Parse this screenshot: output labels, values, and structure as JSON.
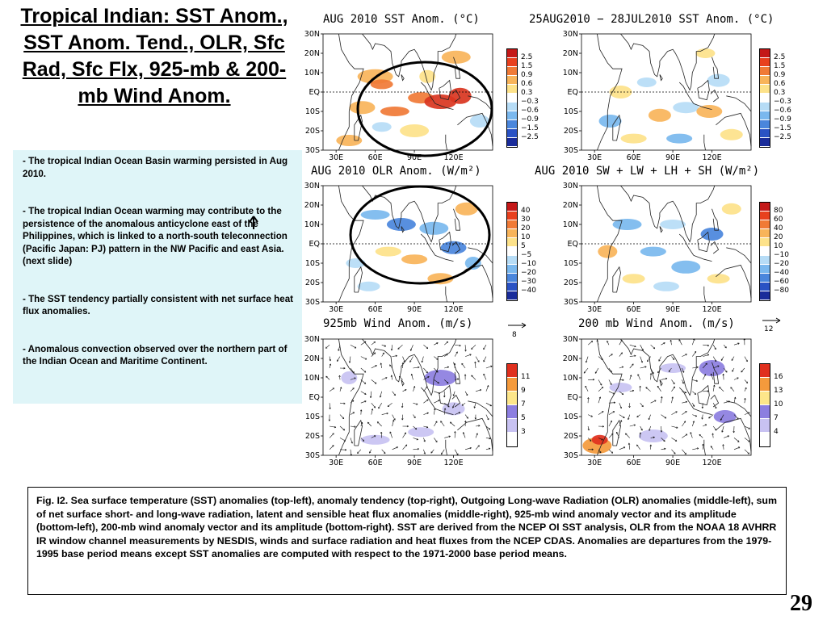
{
  "slide": {
    "title": "Tropical Indian: SST Anom., SST Anom. Tend., OLR, Sfc Rad, Sfc Flx, 925-mb & 200-mb Wind Anom.",
    "page_number": "29"
  },
  "bullets": [
    "- The tropical Indian Ocean Basin warming persisted in Aug 2010.",
    "- The tropical Indian Ocean warming may contribute to the persistence of the anomalous anticyclone east of the Philippines, which is linked to a north-south teleconnection (Pacific Japan: PJ) pattern in the NW Pacific and east Asia. (next slide)",
    "- The SST tendency partially consistent with net surface heat flux anomalies.",
    "- Anomalous convection observed over the northern part of the Indian Ocean and Maritime Continent."
  ],
  "caption": "Fig. I2. Sea surface temperature (SST) anomalies (top-left), anomaly tendency (top-right), Outgoing Long-wave Radiation (OLR) anomalies (middle-left), sum of net surface short- and long-wave radiation, latent and sensible heat flux anomalies (middle-right), 925-mb wind anomaly vector and its amplitude (bottom-left), 200-mb wind anomaly vector and its amplitude  (bottom-right). SST are derived from the NCEP OI SST analysis, OLR from the NOAA 18 AVHRR IR window channel measurements by NESDIS, winds and surface radiation and heat fluxes from the NCEP CDAS. Anomalies are  departures from the 1979-1995 base period means except SST anomalies are computed with respect to the 1971-2000 base period means.",
  "map_axes": {
    "lat_labels": [
      "30N",
      "20N",
      "10N",
      "EQ",
      "10S",
      "20S",
      "30S"
    ],
    "lon_labels": [
      "30E",
      "60E",
      "90E",
      "120E"
    ]
  },
  "panels": [
    {
      "id": "sst",
      "title": "AUG 2010 SST Anom. (°C)",
      "colorbar": [
        "2.5",
        "1.5",
        "0.9",
        "0.6",
        "0.3",
        "−0.3",
        "−0.6",
        "−0.9",
        "−1.5",
        "−2.5"
      ],
      "colors": [
        "#c41818",
        "#e8401e",
        "#f07a36",
        "#f8b45a",
        "#fde28a",
        "#ffffff",
        "#b6dcf6",
        "#7ab8ee",
        "#4a86dc",
        "#2a52c4",
        "#1a2c9a"
      ]
    },
    {
      "id": "sst-tend",
      "title": "25AUG2010 − 28JUL2010 SST Anom. (°C)",
      "colorbar": [
        "2.5",
        "1.5",
        "0.9",
        "0.6",
        "0.3",
        "−0.3",
        "−0.6",
        "−0.9",
        "−1.5",
        "−2.5"
      ],
      "colors": [
        "#c41818",
        "#e8401e",
        "#f07a36",
        "#f8b45a",
        "#fde28a",
        "#ffffff",
        "#b6dcf6",
        "#7ab8ee",
        "#4a86dc",
        "#2a52c4",
        "#1a2c9a"
      ]
    },
    {
      "id": "olr",
      "title": "AUG 2010 OLR Anom. (W/m²)",
      "colorbar": [
        "40",
        "30",
        "20",
        "10",
        "5",
        "−5",
        "−10",
        "−20",
        "−30",
        "−40"
      ],
      "colors": [
        "#c41818",
        "#e8401e",
        "#f07a36",
        "#f8b45a",
        "#fde28a",
        "#ffffff",
        "#b6dcf6",
        "#7ab8ee",
        "#4a86dc",
        "#2a52c4",
        "#1a2c9a"
      ]
    },
    {
      "id": "sfc-flux",
      "title": "AUG 2010 SW + LW + LH + SH (W/m²)",
      "colorbar": [
        "80",
        "60",
        "40",
        "20",
        "10",
        "−10",
        "−20",
        "−40",
        "−60",
        "−80"
      ],
      "colors": [
        "#c41818",
        "#e8401e",
        "#f07a36",
        "#f8b45a",
        "#fde28a",
        "#ffffff",
        "#b6dcf6",
        "#7ab8ee",
        "#4a86dc",
        "#2a52c4",
        "#1a2c9a"
      ]
    },
    {
      "id": "wind925",
      "title": "925mb Wind Anom. (m/s)",
      "reference_vector": "8",
      "colorbar": [
        "11",
        "9",
        "7",
        "5",
        "3"
      ],
      "colors": [
        "#e0301e",
        "#f49a3c",
        "#fde68a",
        "#8c7ee0",
        "#c8c2f2",
        "#ffffff"
      ]
    },
    {
      "id": "wind200",
      "title": "200 mb Wind Anom. (m/s)",
      "reference_vector": "12",
      "colorbar": [
        "16",
        "13",
        "10",
        "7",
        "4"
      ],
      "colors": [
        "#e0301e",
        "#f49a3c",
        "#fde68a",
        "#8c7ee0",
        "#c8c2f2",
        "#ffffff"
      ]
    }
  ]
}
